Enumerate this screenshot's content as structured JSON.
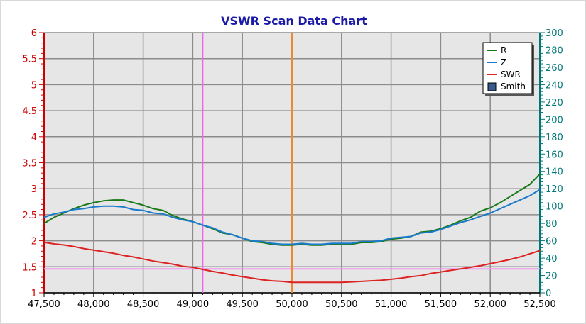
{
  "window": {
    "title": "VSWR Scan Data Chart"
  },
  "colors": {
    "title": "#1a1aa6",
    "left_axis": "#cc0000",
    "right_axis": "#007777",
    "grid": "#8c8c8c",
    "plot_bg": "#e6e6e6",
    "marker_vertical_1": "#ee66ee",
    "marker_vertical_2": "#ee8833",
    "marker_horizontal": "#ee99ee"
  },
  "chart_data": {
    "type": "line",
    "title": "VSWR Scan Data Chart",
    "x_axis": {
      "min": 47500,
      "max": 52500,
      "ticks": [
        47500,
        48000,
        48500,
        49000,
        49500,
        50000,
        50500,
        51000,
        51500,
        52000,
        52500
      ],
      "tick_labels": [
        "47,500",
        "48,000",
        "48,500",
        "49,000",
        "49,500",
        "50,000",
        "50,500",
        "51,000",
        "51,500",
        "52,000",
        "52,500"
      ]
    },
    "y_left": {
      "min": 1,
      "max": 6,
      "ticks": [
        1,
        1.5,
        2,
        2.5,
        3,
        3.5,
        4,
        4.5,
        5,
        5.5,
        6
      ],
      "tick_labels": [
        "1",
        "1.5",
        "2",
        "2.5",
        "3",
        "3.5",
        "4",
        "4.5",
        "5",
        "5.5",
        "6"
      ]
    },
    "y_right": {
      "min": 0,
      "max": 300,
      "ticks": [
        0,
        20,
        40,
        60,
        80,
        100,
        120,
        140,
        160,
        180,
        200,
        220,
        240,
        260,
        280,
        300
      ],
      "tick_labels": [
        "0",
        "20",
        "40",
        "60",
        "80",
        "100",
        "120",
        "140",
        "160",
        "180",
        "200",
        "220",
        "240",
        "260",
        "280",
        "300"
      ]
    },
    "grid": true,
    "legend_position": "top-right",
    "legend": [
      {
        "name": "R",
        "color": "#1a7a1a",
        "kind": "line"
      },
      {
        "name": "Z",
        "color": "#1a7acc",
        "kind": "line"
      },
      {
        "name": "SWR",
        "color": "#dd2222",
        "kind": "line"
      },
      {
        "name": "Smith",
        "color": "#3a5a8a",
        "kind": "box"
      }
    ],
    "x": [
      47500,
      47600,
      47700,
      47800,
      47900,
      48000,
      48100,
      48200,
      48300,
      48400,
      48500,
      48600,
      48700,
      48800,
      48900,
      49000,
      49100,
      49200,
      49300,
      49400,
      49500,
      49600,
      49700,
      49800,
      49900,
      50000,
      50100,
      50200,
      50300,
      50400,
      50500,
      50600,
      50700,
      50800,
      50900,
      51000,
      51100,
      51200,
      51300,
      51400,
      51500,
      51600,
      51700,
      51800,
      51900,
      52000,
      52100,
      52200,
      52300,
      52400,
      52500
    ],
    "series": [
      {
        "name": "R",
        "axis": "right",
        "color": "#1a7a1a",
        "values": [
          80,
          87,
          92,
          97,
          101,
          104,
          106,
          107,
          107,
          104,
          101,
          97,
          95,
          89,
          85,
          82,
          78,
          74,
          69,
          67,
          63,
          59,
          58,
          56,
          55,
          55,
          56,
          55,
          55,
          56,
          56,
          56,
          58,
          58,
          59,
          62,
          63,
          65,
          70,
          71,
          74,
          78,
          83,
          87,
          94,
          98,
          104,
          111,
          118,
          125,
          137
        ]
      },
      {
        "name": "Z",
        "axis": "right",
        "color": "#1a7acc",
        "values": [
          87,
          91,
          93,
          96,
          97,
          99,
          100,
          100,
          99,
          96,
          95,
          92,
          91,
          87,
          84,
          82,
          78,
          75,
          70,
          67,
          63,
          60,
          59,
          57,
          56,
          56,
          57,
          56,
          56,
          57,
          57,
          57,
          59,
          59,
          60,
          63,
          64,
          65,
          69,
          70,
          73,
          77,
          81,
          84,
          88,
          92,
          97,
          102,
          107,
          112,
          119
        ]
      },
      {
        "name": "SWR",
        "axis": "left",
        "color": "#dd2222",
        "values": [
          1.97,
          1.94,
          1.92,
          1.89,
          1.85,
          1.82,
          1.79,
          1.76,
          1.72,
          1.69,
          1.65,
          1.61,
          1.58,
          1.55,
          1.51,
          1.49,
          1.45,
          1.41,
          1.38,
          1.34,
          1.31,
          1.28,
          1.25,
          1.23,
          1.22,
          1.2,
          1.2,
          1.2,
          1.2,
          1.2,
          1.2,
          1.21,
          1.22,
          1.23,
          1.24,
          1.26,
          1.28,
          1.31,
          1.33,
          1.37,
          1.4,
          1.43,
          1.46,
          1.49,
          1.52,
          1.56,
          1.6,
          1.64,
          1.69,
          1.75,
          1.81
        ]
      }
    ],
    "markers": {
      "vertical": [
        {
          "x": 49100,
          "color": "#ee66ee"
        },
        {
          "x": 50000,
          "color": "#ee8833"
        }
      ],
      "horizontal": [
        {
          "y": 1.46,
          "axis": "left",
          "color": "#ee99ee"
        }
      ]
    }
  }
}
